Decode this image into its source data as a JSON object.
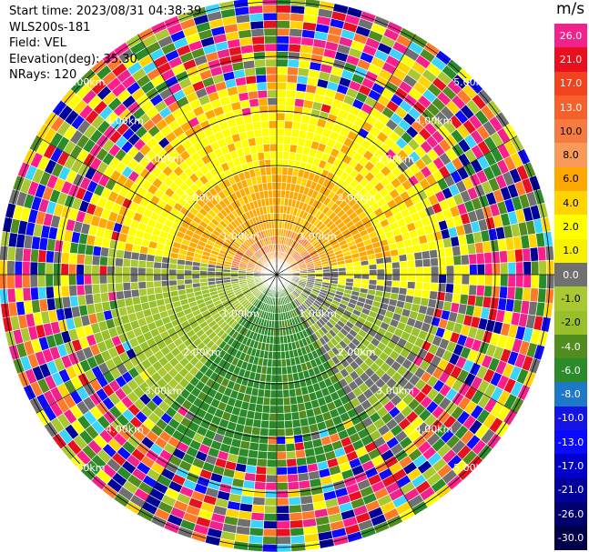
{
  "info": {
    "start_time": "Start time: 2023/08/31 04:38:39",
    "instrument": "WLS200s-181",
    "field": "Field: VEL",
    "elevation": "Elevation(deg): 35.30",
    "nrays": "NRays: 120"
  },
  "colorbar": {
    "unit": "m/s",
    "ticks": [
      "26.0",
      "21.0",
      "17.0",
      "13.0",
      "10.0",
      "8.0",
      "6.0",
      "4.0",
      "2.0",
      "1.0",
      "0.0",
      "-1.0",
      "-2.0",
      "-4.0",
      "-6.0",
      "-8.0",
      "-10.0",
      "-13.0",
      "-17.0",
      "-21.0",
      "-26.0",
      "-30.0"
    ],
    "colors": [
      "#f0238c",
      "#e8101e",
      "#f2431e",
      "#f6602a",
      "#f77a40",
      "#fa9a58",
      "#ffa800",
      "#ffd400",
      "#ffff00",
      "#f7f000",
      "#707070",
      "#aac832",
      "#98c02a",
      "#508c1e",
      "#2b8b28",
      "#1e78c8",
      "#1414e6",
      "#0a0aff",
      "#0000c8",
      "#00009a",
      "#000070",
      "#00004a"
    ]
  },
  "range_labels": [
    "1.00km",
    "2.00km",
    "3.00km",
    "4.00km",
    "5.00km"
  ],
  "palette": {
    "clutter": [
      "#ff1e8c",
      "#f0238c",
      "#2b8b28",
      "#aac832",
      "#0a0aff",
      "#ffd400",
      "#ff7a28",
      "#707070",
      "#00009a",
      "#e8101e",
      "#ffff00",
      "#3ad4ff",
      "#508c1e"
    ]
  }
}
